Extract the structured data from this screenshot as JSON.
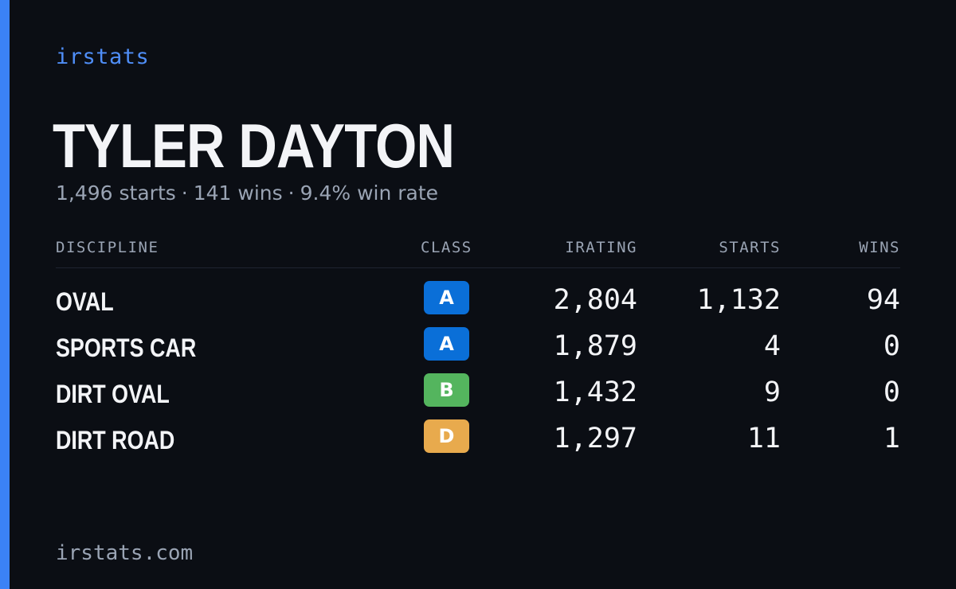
{
  "brand": "irstats",
  "driver_name": "TYLER DAYTON",
  "summary": {
    "starts": "1,496 starts",
    "wins": "141 wins",
    "win_rate": "9.4% win rate",
    "separator": "·"
  },
  "table": {
    "headers": {
      "discipline": "DISCIPLINE",
      "class": "CLASS",
      "irating": "IRATING",
      "starts": "STARTS",
      "wins": "WINS"
    },
    "rows": [
      {
        "discipline": "OVAL",
        "class": "A",
        "class_color": "#0a6fd8",
        "irating": "2,804",
        "starts": "1,132",
        "wins": "94"
      },
      {
        "discipline": "SPORTS CAR",
        "class": "A",
        "class_color": "#0a6fd8",
        "irating": "1,879",
        "starts": "4",
        "wins": "0"
      },
      {
        "discipline": "DIRT OVAL",
        "class": "B",
        "class_color": "#54b55e",
        "irating": "1,432",
        "starts": "9",
        "wins": "0"
      },
      {
        "discipline": "DIRT ROAD",
        "class": "D",
        "class_color": "#e8aa4d",
        "irating": "1,297",
        "starts": "11",
        "wins": "1"
      }
    ]
  },
  "footer": "irstats.com",
  "colors": {
    "background": "#0b0e14",
    "accent": "#3b82f6",
    "brand_text": "#4f8ef7",
    "muted_text": "#9aa4b4",
    "primary_text": "#f3f4f7"
  }
}
